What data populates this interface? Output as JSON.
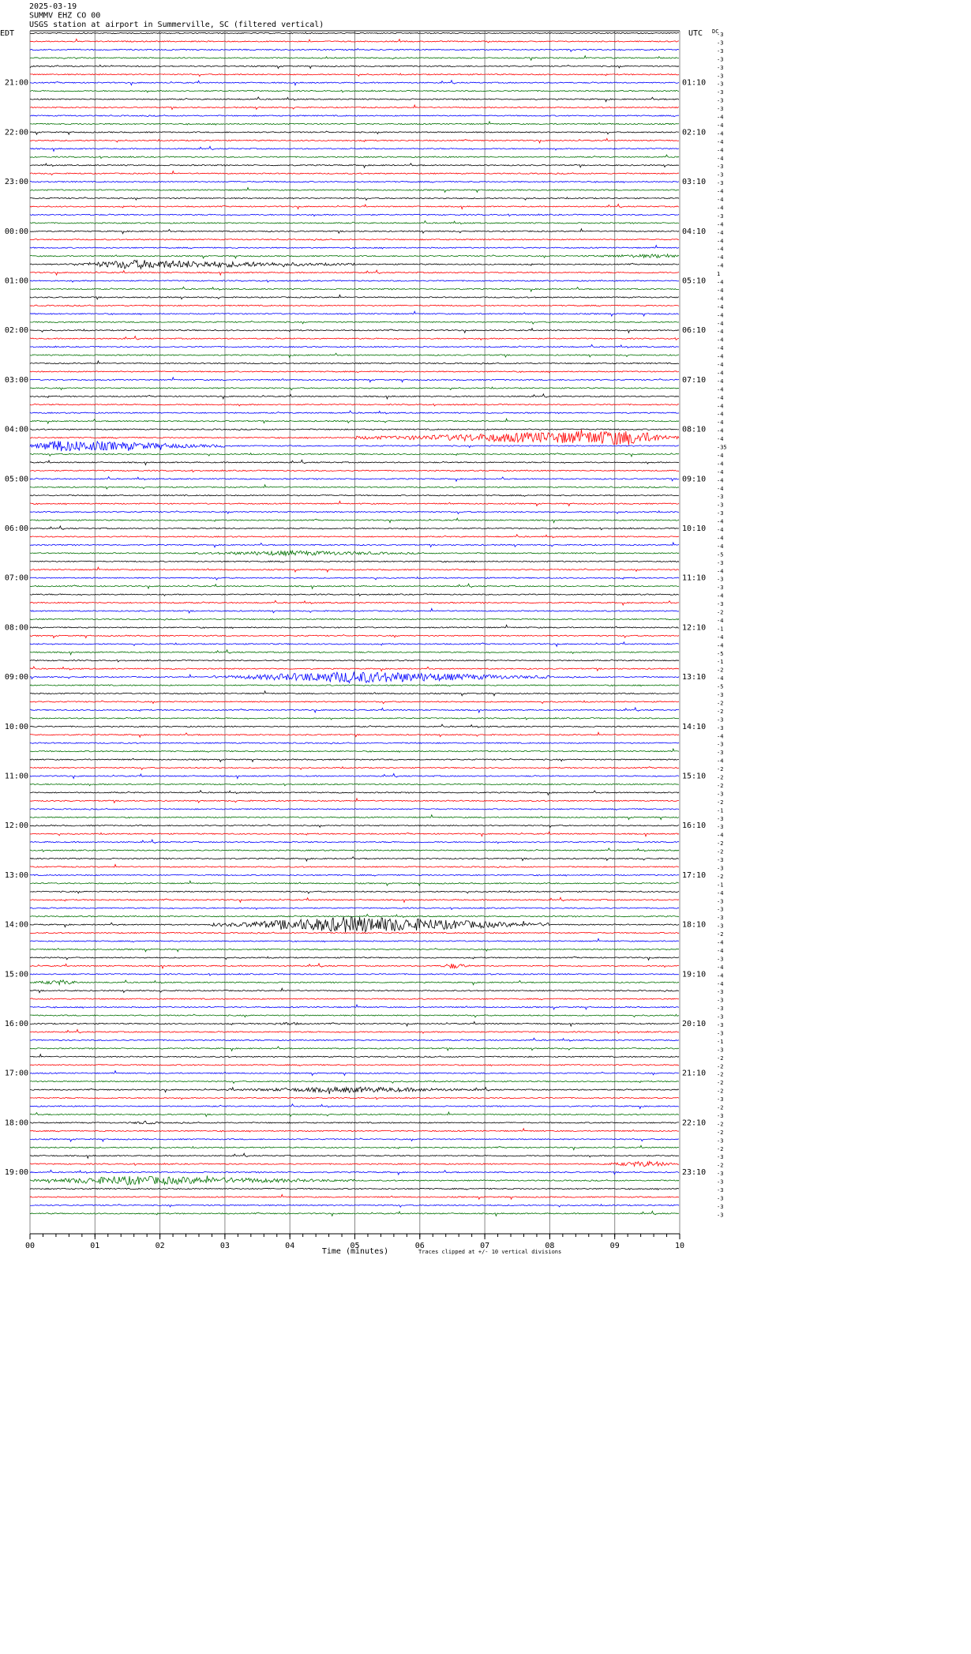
{
  "chart_data": {
    "type": "helicorder",
    "title_lines": [
      "2025-03-19",
      "SUMMV EHZ CO 00",
      "USGS station at airport in Summerville, SC (filtered vertical)"
    ],
    "left_zone": "EDT",
    "right_zone": "UTC",
    "dc_header": "DC",
    "left_time_labels": [
      "21:00",
      "22:00",
      "23:00",
      "00:00",
      "01:00",
      "02:00",
      "03:00",
      "04:00",
      "05:00",
      "06:00",
      "07:00",
      "08:00",
      "09:00",
      "10:00",
      "11:00",
      "12:00",
      "13:00",
      "14:00",
      "15:00",
      "16:00",
      "17:00",
      "18:00",
      "19:00"
    ],
    "right_time_labels": [
      "01:10",
      "02:10",
      "03:10",
      "04:10",
      "05:10",
      "06:10",
      "07:10",
      "08:10",
      "09:10",
      "10:10",
      "11:10",
      "12:10",
      "13:10",
      "14:10",
      "15:10",
      "16:10",
      "17:10",
      "18:10",
      "19:10",
      "20:10",
      "21:10",
      "22:10",
      "23:10"
    ],
    "dc_values": [
      -3,
      -3,
      -3,
      -3,
      -3,
      -3,
      -3,
      -3,
      -3,
      -3,
      -4,
      -4,
      -4,
      -4,
      -4,
      -4,
      -3,
      -3,
      -3,
      -4,
      -4,
      -4,
      -3,
      -4,
      -4,
      -4,
      -4,
      -4,
      -4,
      1,
      -4,
      -4,
      -4,
      -4,
      -4,
      -4,
      -4,
      -4,
      -4,
      -4,
      -4,
      -4,
      -4,
      -4,
      -4,
      -4,
      -4,
      -4,
      -4,
      -4,
      -35,
      -4,
      -4,
      -4,
      -4,
      -4,
      -3,
      -3,
      -3,
      -4,
      -4,
      -4,
      -4,
      -5,
      -3,
      -4,
      -3,
      -3,
      -4,
      -3,
      -2,
      -4,
      -1,
      -4,
      -4,
      -5,
      -1,
      -2,
      -4,
      -5,
      -3,
      -2,
      -2,
      -3,
      -3,
      -4,
      -3,
      -3,
      -4,
      -2,
      -2,
      -2,
      -3,
      -2,
      -1,
      -3,
      -3,
      -4,
      -2,
      -2,
      -3,
      -3,
      -2,
      -1,
      -4,
      -3,
      -3,
      -3,
      -3,
      -2,
      -4,
      -4,
      -3,
      -4,
      -4,
      -4,
      -3,
      -3,
      -3,
      -3,
      -3,
      -3,
      -1,
      -3,
      -2,
      -2,
      -2,
      -2,
      -2,
      -3,
      -2,
      -3,
      -2,
      -2,
      -3,
      -2,
      -3,
      -2,
      -3,
      -3,
      -3,
      -3,
      -3,
      -3
    ],
    "trace_colors": [
      "#000000",
      "#ff0000",
      "#0000ff",
      "#007000"
    ],
    "x_label": "Time (minutes)",
    "xlim": [
      0,
      10
    ],
    "xticks": [
      {
        "value": 0,
        "label": "00"
      },
      {
        "value": 1,
        "label": "01"
      },
      {
        "value": 2,
        "label": "02"
      },
      {
        "value": 3,
        "label": "03"
      },
      {
        "value": 4,
        "label": "04"
      },
      {
        "value": 5,
        "label": "05"
      },
      {
        "value": 6,
        "label": "06"
      },
      {
        "value": 7,
        "label": "07"
      },
      {
        "value": 8,
        "label": "08"
      },
      {
        "value": 9,
        "label": "09"
      },
      {
        "value": 10,
        "label": "10"
      }
    ],
    "grid": true,
    "footnote": "Traces clipped at +/- 10 vertical divisions"
  }
}
